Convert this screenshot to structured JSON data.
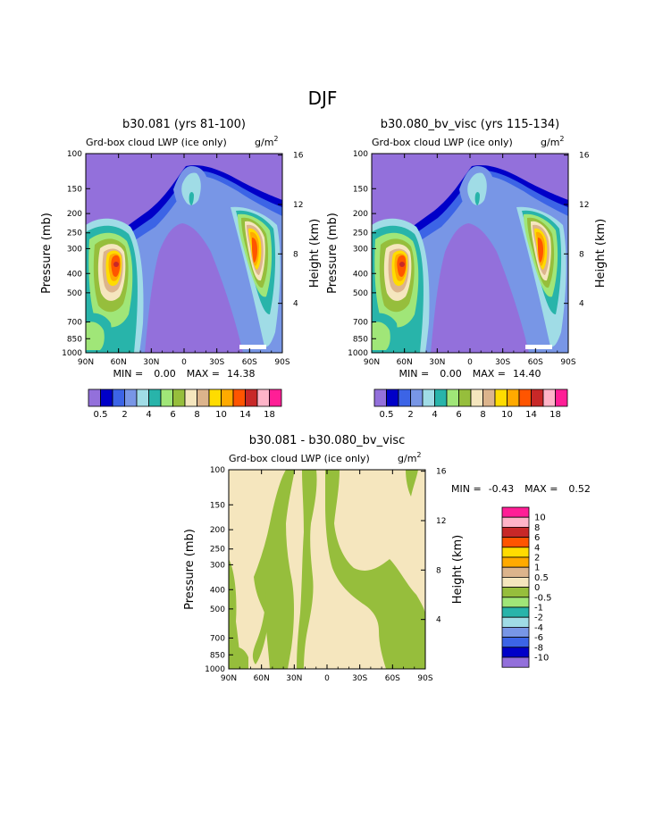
{
  "page_title": "DJF",
  "colors": {
    "scale": [
      "#9370db",
      "#0000c8",
      "#3c64e6",
      "#7896e6",
      "#a0dce6",
      "#28b4aa",
      "#a0e678",
      "#96be3c",
      "#f5e6be",
      "#dcb48c",
      "#ffdc00",
      "#ffaa00",
      "#ff5500",
      "#c82828",
      "#ffb4c8",
      "#ff1e96"
    ],
    "diff_scale": [
      "#9370db",
      "#0000c8",
      "#3c64e6",
      "#7896e6",
      "#a0dce6",
      "#28b4aa",
      "#a0e678",
      "#96be3c",
      "#f5e6be",
      "#dcb48c",
      "#ffaa00",
      "#ffdc00",
      "#ff5500",
      "#c82828",
      "#ffb4c8",
      "#ff1e96"
    ]
  },
  "chart_data": [
    {
      "type": "heatmap",
      "title": "b30.081 (yrs 81-100)",
      "subtitle_left": "Grd-box cloud LWP (ice only)",
      "subtitle_right": "g/m",
      "subtitle_sup": "2",
      "ylabel": "Pressure (mb)",
      "ylabel_right": "Height (km)",
      "x_ticks": [
        "90N",
        "60N",
        "30N",
        "0",
        "30S",
        "60S",
        "90S"
      ],
      "y_ticks": [
        "100",
        "150",
        "200",
        "250",
        "300",
        "400",
        "500",
        "700",
        "850",
        "1000"
      ],
      "y_right_ticks": [
        "16",
        "12",
        "8",
        "4"
      ],
      "min_label": "MIN =",
      "min_value": "0.00",
      "max_label": "MAX =",
      "max_value": "14.38",
      "colorbar_labels": [
        "0.5",
        "2",
        "4",
        "6",
        "8",
        "10",
        "14",
        "18"
      ]
    },
    {
      "type": "heatmap",
      "title": "b30.080_bv_visc (yrs 115-134)",
      "subtitle_left": "Grd-box cloud LWP (ice only)",
      "subtitle_right": "g/m",
      "subtitle_sup": "2",
      "ylabel": "Pressure (mb)",
      "ylabel_right": "Height (km)",
      "x_ticks": [
        "90N",
        "60N",
        "30N",
        "0",
        "30S",
        "60S",
        "90S"
      ],
      "y_ticks": [
        "100",
        "150",
        "200",
        "250",
        "300",
        "400",
        "500",
        "700",
        "850",
        "1000"
      ],
      "y_right_ticks": [
        "16",
        "12",
        "8",
        "4"
      ],
      "min_label": "MIN =",
      "min_value": "0.00",
      "max_label": "MAX =",
      "max_value": "14.40",
      "colorbar_labels": [
        "0.5",
        "2",
        "4",
        "6",
        "8",
        "10",
        "14",
        "18"
      ]
    },
    {
      "type": "heatmap",
      "title": "b30.081 - b30.080_bv_visc",
      "subtitle_left": "Grd-box cloud LWP (ice only)",
      "subtitle_right": "g/m",
      "subtitle_sup": "2",
      "ylabel": "Pressure (mb)",
      "ylabel_right": "Height (km)",
      "x_ticks": [
        "90N",
        "60N",
        "30N",
        "0",
        "30S",
        "60S",
        "90S"
      ],
      "y_ticks": [
        "100",
        "150",
        "200",
        "250",
        "300",
        "400",
        "500",
        "700",
        "850",
        "1000"
      ],
      "y_right_ticks": [
        "16",
        "12",
        "8",
        "4"
      ],
      "min_label": "MIN =",
      "min_value": "-0.43",
      "max_label": "MAX =",
      "max_value": "0.52",
      "colorbar_labels": [
        "10",
        "8",
        "6",
        "4",
        "2",
        "1",
        "0.5",
        "0",
        "-0.5",
        "-1",
        "-2",
        "-4",
        "-6",
        "-8",
        "-10"
      ]
    }
  ]
}
